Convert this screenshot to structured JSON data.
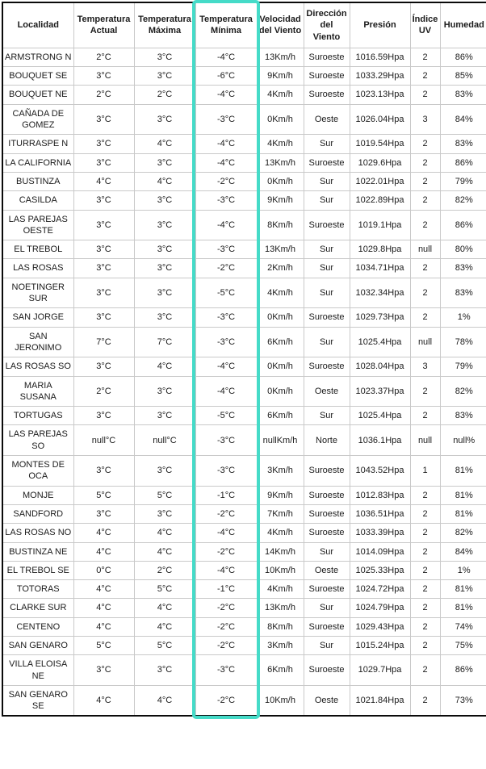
{
  "accent_color": "#45dbc8",
  "chart_data": {
    "type": "table",
    "title": "",
    "highlighted_column": "Temperatura Mínima",
    "highlighted_column_index": 3,
    "columns": [
      "Localidad",
      "Temperatura Actual",
      "Temperatura Máxima",
      "Temperatura Mínima",
      "Velocidad del Viento",
      "Dirección del Viento",
      "Presión",
      "Índice UV",
      "Humedad"
    ],
    "rows": [
      [
        "ARMSTRONG N",
        "2°C",
        "3°C",
        "-4°C",
        "13Km/h",
        "Suroeste",
        "1016.59Hpa",
        "2",
        "86%"
      ],
      [
        "BOUQUET SE",
        "3°C",
        "3°C",
        "-6°C",
        "9Km/h",
        "Suroeste",
        "1033.29Hpa",
        "2",
        "85%"
      ],
      [
        "BOUQUET NE",
        "2°C",
        "2°C",
        "-4°C",
        "4Km/h",
        "Suroeste",
        "1023.13Hpa",
        "2",
        "83%"
      ],
      [
        "CAÑADA DE GOMEZ",
        "3°C",
        "3°C",
        "-3°C",
        "0Km/h",
        "Oeste",
        "1026.04Hpa",
        "3",
        "84%"
      ],
      [
        "ITURRASPE N",
        "3°C",
        "4°C",
        "-4°C",
        "4Km/h",
        "Sur",
        "1019.54Hpa",
        "2",
        "83%"
      ],
      [
        "LA CALIFORNIA",
        "3°C",
        "3°C",
        "-4°C",
        "13Km/h",
        "Suroeste",
        "1029.6Hpa",
        "2",
        "86%"
      ],
      [
        "BUSTINZA",
        "4°C",
        "4°C",
        "-2°C",
        "0Km/h",
        "Sur",
        "1022.01Hpa",
        "2",
        "79%"
      ],
      [
        "CASILDA",
        "3°C",
        "3°C",
        "-3°C",
        "9Km/h",
        "Sur",
        "1022.89Hpa",
        "2",
        "82%"
      ],
      [
        "LAS PAREJAS OESTE",
        "3°C",
        "3°C",
        "-4°C",
        "8Km/h",
        "Suroeste",
        "1019.1Hpa",
        "2",
        "86%"
      ],
      [
        "EL TREBOL",
        "3°C",
        "3°C",
        "-3°C",
        "13Km/h",
        "Sur",
        "1029.8Hpa",
        "null",
        "80%"
      ],
      [
        "LAS ROSAS",
        "3°C",
        "3°C",
        "-2°C",
        "2Km/h",
        "Sur",
        "1034.71Hpa",
        "2",
        "83%"
      ],
      [
        "NOETINGER SUR",
        "3°C",
        "3°C",
        "-5°C",
        "4Km/h",
        "Sur",
        "1032.34Hpa",
        "2",
        "83%"
      ],
      [
        "SAN JORGE",
        "3°C",
        "3°C",
        "-3°C",
        "0Km/h",
        "Suroeste",
        "1029.73Hpa",
        "2",
        "1%"
      ],
      [
        "SAN JERONIMO",
        "7°C",
        "7°C",
        "-3°C",
        "6Km/h",
        "Sur",
        "1025.4Hpa",
        "null",
        "78%"
      ],
      [
        "LAS ROSAS SO",
        "3°C",
        "4°C",
        "-4°C",
        "0Km/h",
        "Suroeste",
        "1028.04Hpa",
        "3",
        "79%"
      ],
      [
        "MARIA SUSANA",
        "2°C",
        "3°C",
        "-4°C",
        "0Km/h",
        "Oeste",
        "1023.37Hpa",
        "2",
        "82%"
      ],
      [
        "TORTUGAS",
        "3°C",
        "3°C",
        "-5°C",
        "6Km/h",
        "Sur",
        "1025.4Hpa",
        "2",
        "83%"
      ],
      [
        "LAS PAREJAS SO",
        "null°C",
        "null°C",
        "-3°C",
        "nullKm/h",
        "Norte",
        "1036.1Hpa",
        "null",
        "null%"
      ],
      [
        "MONTES DE OCA",
        "3°C",
        "3°C",
        "-3°C",
        "3Km/h",
        "Suroeste",
        "1043.52Hpa",
        "1",
        "81%"
      ],
      [
        "MONJE",
        "5°C",
        "5°C",
        "-1°C",
        "9Km/h",
        "Suroeste",
        "1012.83Hpa",
        "2",
        "81%"
      ],
      [
        "SANDFORD",
        "3°C",
        "3°C",
        "-2°C",
        "7Km/h",
        "Suroeste",
        "1036.51Hpa",
        "2",
        "81%"
      ],
      [
        "LAS ROSAS NO",
        "4°C",
        "4°C",
        "-4°C",
        "4Km/h",
        "Suroeste",
        "1033.39Hpa",
        "2",
        "82%"
      ],
      [
        "BUSTINZA NE",
        "4°C",
        "4°C",
        "-2°C",
        "14Km/h",
        "Sur",
        "1014.09Hpa",
        "2",
        "84%"
      ],
      [
        "EL TREBOL SE",
        "0°C",
        "2°C",
        "-4°C",
        "10Km/h",
        "Oeste",
        "1025.33Hpa",
        "2",
        "1%"
      ],
      [
        "TOTORAS",
        "4°C",
        "5°C",
        "-1°C",
        "4Km/h",
        "Suroeste",
        "1024.72Hpa",
        "2",
        "81%"
      ],
      [
        "CLARKE SUR",
        "4°C",
        "4°C",
        "-2°C",
        "13Km/h",
        "Sur",
        "1024.79Hpa",
        "2",
        "81%"
      ],
      [
        "CENTENO",
        "4°C",
        "4°C",
        "-2°C",
        "8Km/h",
        "Suroeste",
        "1029.43Hpa",
        "2",
        "74%"
      ],
      [
        "SAN GENARO",
        "5°C",
        "5°C",
        "-2°C",
        "3Km/h",
        "Sur",
        "1015.24Hpa",
        "2",
        "75%"
      ],
      [
        "VILLA ELOISA NE",
        "3°C",
        "3°C",
        "-3°C",
        "6Km/h",
        "Suroeste",
        "1029.7Hpa",
        "2",
        "86%"
      ],
      [
        "SAN GENARO SE",
        "4°C",
        "4°C",
        "-2°C",
        "10Km/h",
        "Oeste",
        "1021.84Hpa",
        "2",
        "73%"
      ]
    ]
  }
}
